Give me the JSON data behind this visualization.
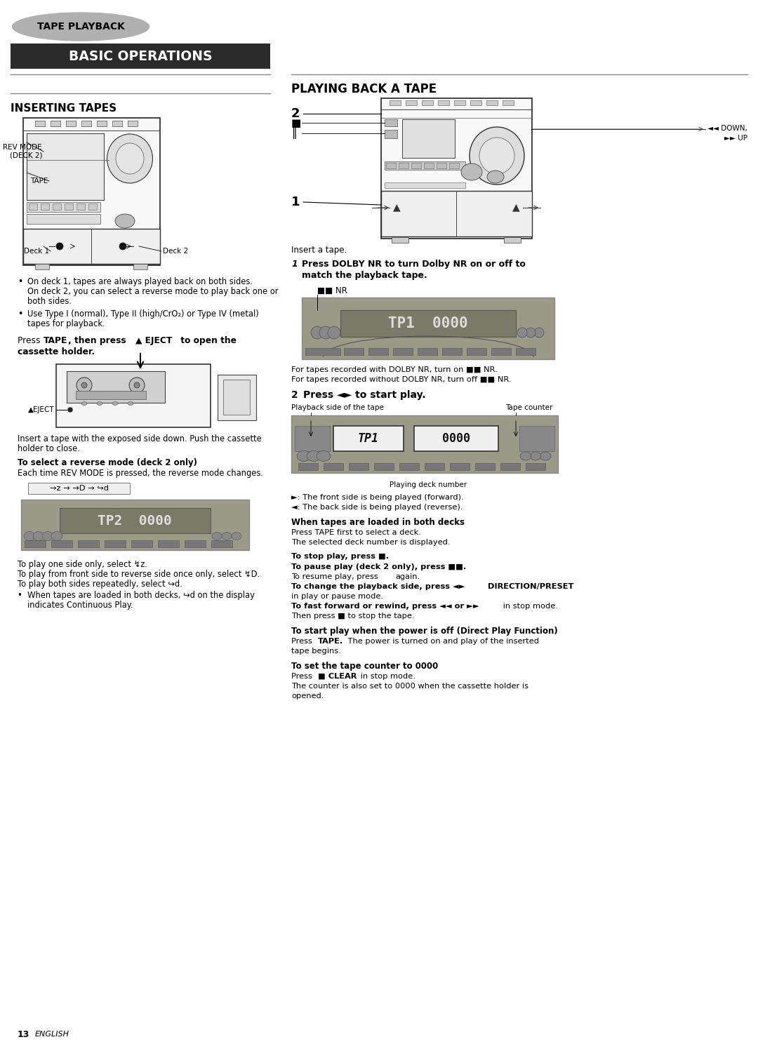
{
  "page_bg": "#ffffff",
  "page_width": 10.8,
  "page_height": 15.05,
  "dpi": 100,
  "header_badge_text": "TAPE PLAYBACK",
  "section_left_title_text": "BASIC OPERATIONS",
  "section_left_title_text_color": "#ffffff",
  "section_right_title_text": "PLAYING BACK A TAPE",
  "inserting_tapes_title": "INSERTING TAPES",
  "bullet1_line1": "On deck 1, tapes are always played back on both sides.",
  "bullet1_line2": "On deck 2, you can select a reverse mode to play back one or",
  "bullet1_line3": "    both sides.",
  "bullet2_line1": "Use Type I (normal), Type II (high/CrO₂) or Type IV (metal)",
  "bullet2_line2": "    tapes for playback.",
  "eject_label": "▲EJECT",
  "insert_tape_text": "Insert a tape with the exposed side down. Push the cassette",
  "insert_tape_text2": "holder to close.",
  "rev_mode_title_bold": "To select a reverse mode (deck 2 only)",
  "rev_mode_text": "Each time REV MODE is pressed, the reverse mode changes.",
  "dolby_nr_label": "■■ NR",
  "for_tapes_with": "For tapes recorded with DOLBY NR, turn on ■■ NR.",
  "for_tapes_without": "For tapes recorded without DOLBY NR, turn off ■■ NR.",
  "playback_side_label": "Playback side of the tape",
  "tape_counter_label": "Tape counter",
  "playing_deck_label": "Playing deck number",
  "forward_text": "►: The front side is being played (forward).",
  "reverse_text": "◄: The back side is being played (reverse).",
  "when_both_decks_bold": "When tapes are loaded in both decks",
  "when_both_decks_text1": "Press TAPE first to select a deck.",
  "when_both_decks_text2": "The selected deck number is displayed.",
  "deck1_label": "Deck 1",
  "deck2_label": "Deck 2",
  "rev_mode_label_line1": "REV MODE",
  "rev_mode_label_line2": "(DECK 2)",
  "tape_label": "TAPE",
  "down_up_label": "◄◄ DOWN,\n►► UP",
  "insert_tape_caption": "Insert a tape.",
  "direct_play_text2": "tape begins.",
  "tape_counter_text2": "The counter is also set to 0000 when the cassette holder is",
  "tape_counter_text3": "opened.",
  "page_number": "13",
  "page_number_label": "ENGLISH"
}
